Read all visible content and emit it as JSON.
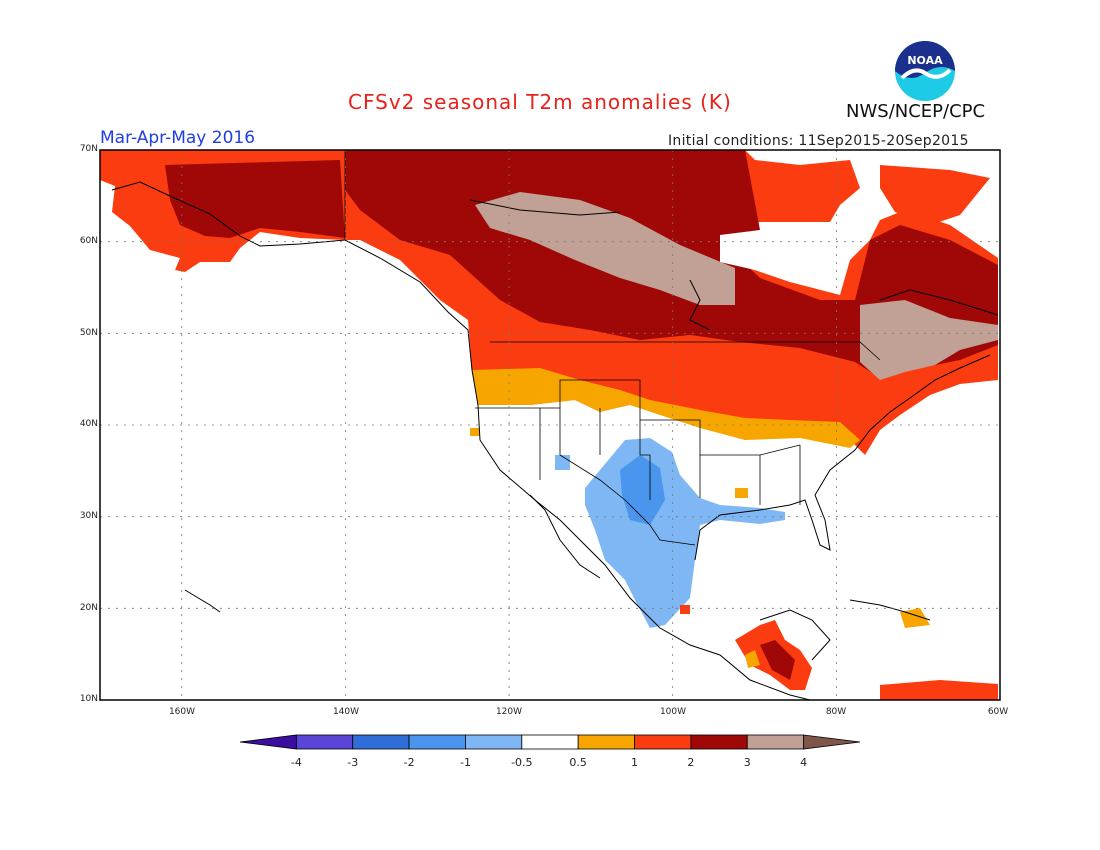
{
  "title": "CFSv2 seasonal T2m anomalies (K)",
  "organization": "NWS/NCEP/CPC",
  "logo_text": "NOAA",
  "period": "Mar-Apr-May 2016",
  "initial_conditions": "Initial conditions: 11Sep2015-20Sep2015",
  "latitude_labels": [
    "70N",
    "60N",
    "50N",
    "40N",
    "30N",
    "20N",
    "10N"
  ],
  "longitude_labels": [
    "160W",
    "140W",
    "120W",
    "100W",
    "80W",
    "60W"
  ],
  "colorbar": {
    "labels": [
      "-4",
      "-3",
      "-2",
      "-1",
      "-0.5",
      "0.5",
      "1",
      "2",
      "3",
      "4"
    ],
    "colors": [
      "#3a0fa0",
      "#5a45d8",
      "#2f6ed9",
      "#4a96ee",
      "#7fb7f4",
      "#ffffff",
      "#f7a600",
      "#fb3c10",
      "#a00808",
      "#c1a095",
      "#7e574a"
    ]
  }
}
